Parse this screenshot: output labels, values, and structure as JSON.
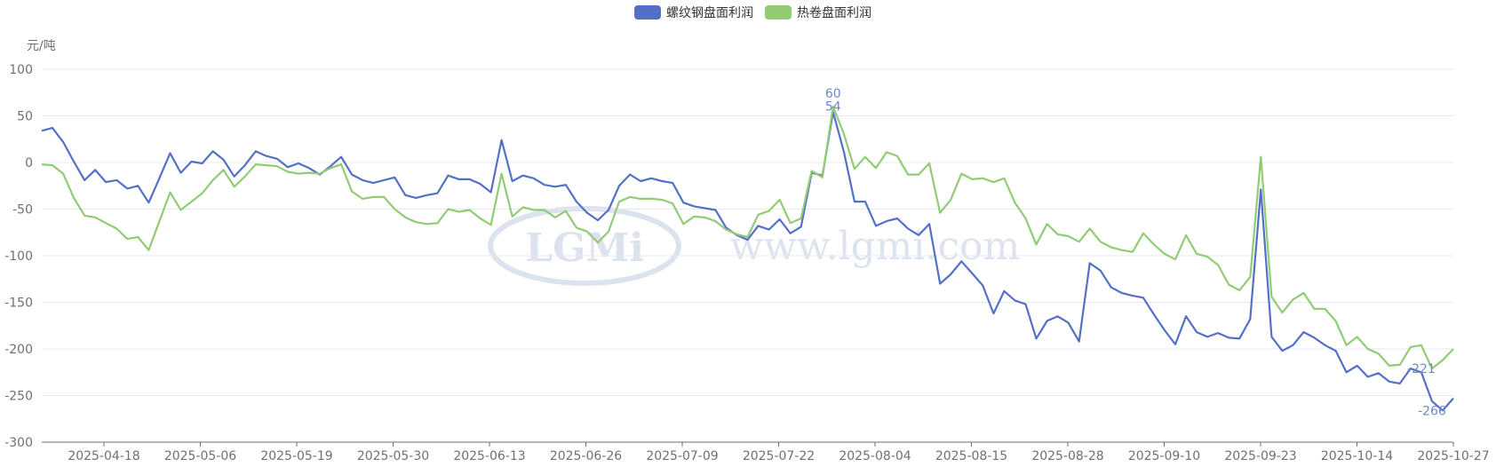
{
  "colors": {
    "rebar": "#5470c6",
    "hot_coil": "#91cc75",
    "grid": "#e6e8ef",
    "axis_text": "#6e7079",
    "watermark": "#dde3ee"
  },
  "watermark": {
    "logo": "LGMi",
    "text": "www.lgmi.com"
  },
  "chart_data": {
    "type": "line",
    "ylabel": "元/吨",
    "ylim": [
      -300,
      100
    ],
    "yticks": [
      100,
      50,
      0,
      -50,
      -100,
      -150,
      -200,
      -250,
      -300
    ],
    "grid": true,
    "legend_position": "top-center",
    "x_tick_labels": [
      "2025-04-18",
      "2025-05-06",
      "2025-05-19",
      "2025-05-30",
      "2025-06-13",
      "2025-06-26",
      "2025-07-09",
      "2025-07-22",
      "2025-08-04",
      "2025-08-15",
      "2025-08-28",
      "2025-09-10",
      "2025-09-23",
      "2025-10-14",
      "2025-10-27"
    ],
    "series": [
      {
        "name": "螺纹钢盘面利润",
        "color": "#5470c6",
        "values": [
          34,
          37,
          22,
          1,
          -19,
          -8,
          -21,
          -19,
          -28,
          -25,
          -43,
          -17,
          10,
          -11,
          1,
          -1,
          12,
          3,
          -15,
          -3,
          12,
          7,
          4,
          -5,
          -1,
          -6,
          -13,
          -4,
          6,
          -13,
          -19,
          -22,
          -19,
          -16,
          -35,
          -38,
          -35,
          -33,
          -14,
          -18,
          -18,
          -23,
          -32,
          24,
          -20,
          -14,
          -17,
          -24,
          -26,
          -24,
          -42,
          -54,
          -62,
          -51,
          -25,
          -13,
          -20,
          -17,
          -20,
          -22,
          -43,
          -47,
          -49,
          -51,
          -70,
          -78,
          -83,
          -68,
          -72,
          -61,
          -76,
          -69,
          -11,
          -14,
          54,
          12,
          -42,
          -42,
          -68,
          -63,
          -60,
          -71,
          -78,
          -66,
          -130,
          -120,
          -106,
          -119,
          -132,
          -162,
          -138,
          -148,
          -152,
          -189,
          -170,
          -165,
          -172,
          -192,
          -108,
          -116,
          -134,
          -140,
          -143,
          -145,
          -163,
          -180,
          -195,
          -165,
          -182,
          -187,
          -183,
          -188,
          -189,
          -168,
          -29,
          -187,
          -202,
          -196,
          -182,
          -188,
          -196,
          -202,
          -225,
          -218,
          -230,
          -226,
          -235,
          -237,
          -221,
          -225,
          -256,
          -266,
          -253
        ]
      },
      {
        "name": "热卷盘面利润",
        "color": "#91cc75",
        "values": [
          -2,
          -3,
          -12,
          -38,
          -57,
          -59,
          -65,
          -71,
          -82,
          -80,
          -94,
          -63,
          -32,
          -51,
          -42,
          -33,
          -19,
          -8,
          -26,
          -15,
          -2,
          -3,
          -4,
          -10,
          -12,
          -11,
          -12,
          -6,
          -2,
          -31,
          -39,
          -37,
          -37,
          -50,
          -59,
          -64,
          -66,
          -65,
          -50,
          -53,
          -51,
          -60,
          -67,
          -12,
          -58,
          -48,
          -51,
          -51,
          -59,
          -52,
          -70,
          -74,
          -86,
          -74,
          -42,
          -37,
          -39,
          -39,
          -40,
          -44,
          -66,
          -58,
          -59,
          -63,
          -72,
          -77,
          -80,
          -56,
          -52,
          -40,
          -65,
          -60,
          -9,
          -16,
          60,
          31,
          -7,
          6,
          -6,
          11,
          7,
          -13,
          -13,
          -1,
          -54,
          -40,
          -12,
          -18,
          -17,
          -21,
          -17,
          -43,
          -60,
          -88,
          -66,
          -77,
          -79,
          -85,
          -71,
          -85,
          -91,
          -94,
          -96,
          -76,
          -88,
          -98,
          -104,
          -78,
          -98,
          -101,
          -110,
          -131,
          -137,
          -123,
          6,
          -144,
          -161,
          -147,
          -140,
          -157,
          -157,
          -170,
          -196,
          -187,
          -200,
          -205,
          -218,
          -217,
          -198,
          -196,
          -221,
          -212,
          -200
        ]
      }
    ],
    "annotations": [
      {
        "series": "螺纹钢盘面利润",
        "label": "54"
      },
      {
        "series": "热卷盘面利润",
        "label": "60"
      },
      {
        "series": "热卷盘面利润",
        "label": "-221"
      },
      {
        "series": "螺纹钢盘面利润",
        "label": "-266"
      }
    ]
  }
}
